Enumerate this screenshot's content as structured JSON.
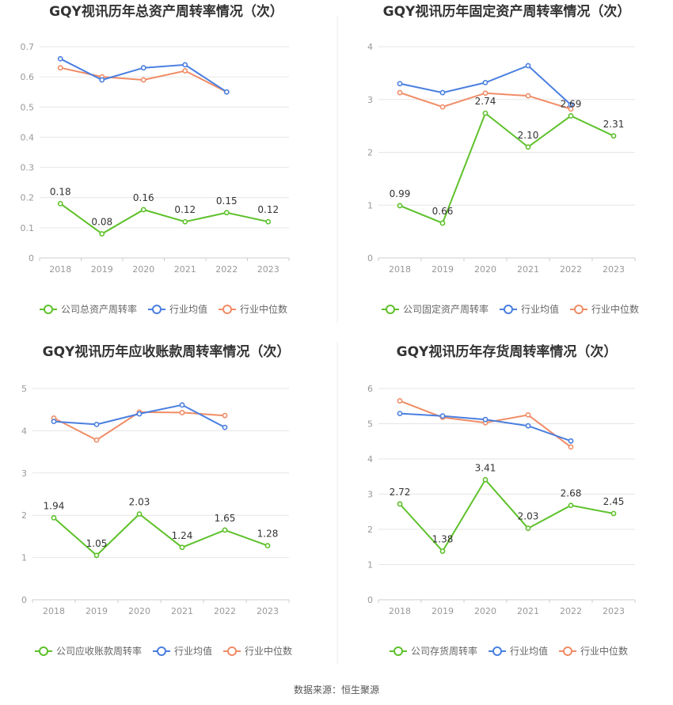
{
  "source": "数据来源：恒生聚源",
  "colors": {
    "company": "#5ec12b",
    "avg": "#4a7fe0",
    "median": "#f08c66"
  },
  "chart_data": [
    {
      "type": "line",
      "title": "GQY视讯历年总资产周转率情况（次）",
      "categories": [
        "2018",
        "2019",
        "2020",
        "2021",
        "2022",
        "2023"
      ],
      "ylim": [
        0,
        0.7
      ],
      "yticks": [
        "0",
        "0.1",
        "0.2",
        "0.3",
        "0.4",
        "0.5",
        "0.6",
        "0.7"
      ],
      "grid": true,
      "legend_position": "bottom",
      "series": [
        {
          "name": "公司总资产周转率",
          "key": "company",
          "values": [
            0.18,
            0.08,
            0.16,
            0.12,
            0.15,
            0.12
          ],
          "labels": [
            "0.18",
            "0.08",
            "0.16",
            "0.12",
            "0.15",
            "0.12"
          ]
        },
        {
          "name": "行业均值",
          "key": "avg",
          "values": [
            0.66,
            0.59,
            0.63,
            0.64,
            0.55,
            null
          ]
        },
        {
          "name": "行业中位数",
          "key": "median",
          "values": [
            0.63,
            0.6,
            0.59,
            0.62,
            0.55,
            null
          ]
        }
      ]
    },
    {
      "type": "line",
      "title": "GQY视讯历年固定资产周转率情况（次）",
      "categories": [
        "2018",
        "2019",
        "2020",
        "2021",
        "2022",
        "2023"
      ],
      "ylim": [
        0,
        4
      ],
      "yticks": [
        "0",
        "1",
        "2",
        "3",
        "4"
      ],
      "grid": true,
      "legend_position": "bottom",
      "series": [
        {
          "name": "公司固定资产周转率",
          "key": "company",
          "values": [
            0.99,
            0.66,
            2.74,
            2.1,
            2.69,
            2.31
          ],
          "labels": [
            "0.99",
            "0.66",
            "2.74",
            "2.10",
            "2.69",
            "2.31"
          ]
        },
        {
          "name": "行业均值",
          "key": "avg",
          "values": [
            3.3,
            3.13,
            3.32,
            3.64,
            2.9,
            null
          ]
        },
        {
          "name": "行业中位数",
          "key": "median",
          "values": [
            3.13,
            2.86,
            3.12,
            3.07,
            2.82,
            null
          ]
        }
      ]
    },
    {
      "type": "line",
      "title": "GQY视讯历年应收账款周转率情况（次）",
      "categories": [
        "2018",
        "2019",
        "2020",
        "2021",
        "2022",
        "2023"
      ],
      "ylim": [
        0,
        5
      ],
      "yticks": [
        "0",
        "1",
        "2",
        "3",
        "4",
        "5"
      ],
      "grid": true,
      "legend_position": "bottom",
      "series": [
        {
          "name": "公司应收账款周转率",
          "key": "company",
          "values": [
            1.94,
            1.05,
            2.03,
            1.24,
            1.65,
            1.28
          ],
          "labels": [
            "1.94",
            "1.05",
            "2.03",
            "1.24",
            "1.65",
            "1.28"
          ]
        },
        {
          "name": "行业均值",
          "key": "avg",
          "values": [
            4.22,
            4.15,
            4.4,
            4.61,
            4.08,
            null
          ]
        },
        {
          "name": "行业中位数",
          "key": "median",
          "values": [
            4.3,
            3.78,
            4.44,
            4.43,
            4.36,
            null
          ]
        }
      ]
    },
    {
      "type": "line",
      "title": "GQY视讯历年存货周转率情况（次）",
      "categories": [
        "2018",
        "2019",
        "2020",
        "2021",
        "2022",
        "2023"
      ],
      "ylim": [
        0,
        6
      ],
      "yticks": [
        "0",
        "1",
        "2",
        "3",
        "4",
        "5",
        "6"
      ],
      "grid": true,
      "legend_position": "bottom",
      "series": [
        {
          "name": "公司存货周转率",
          "key": "company",
          "values": [
            2.72,
            1.38,
            3.41,
            2.03,
            2.68,
            2.45
          ],
          "labels": [
            "2.72",
            "1.38",
            "3.41",
            "2.03",
            "2.68",
            "2.45"
          ]
        },
        {
          "name": "行业均值",
          "key": "avg",
          "values": [
            5.29,
            5.22,
            5.12,
            4.94,
            4.51,
            null
          ]
        },
        {
          "name": "行业中位数",
          "key": "median",
          "values": [
            5.65,
            5.18,
            5.03,
            5.25,
            4.34,
            null
          ]
        }
      ]
    }
  ]
}
